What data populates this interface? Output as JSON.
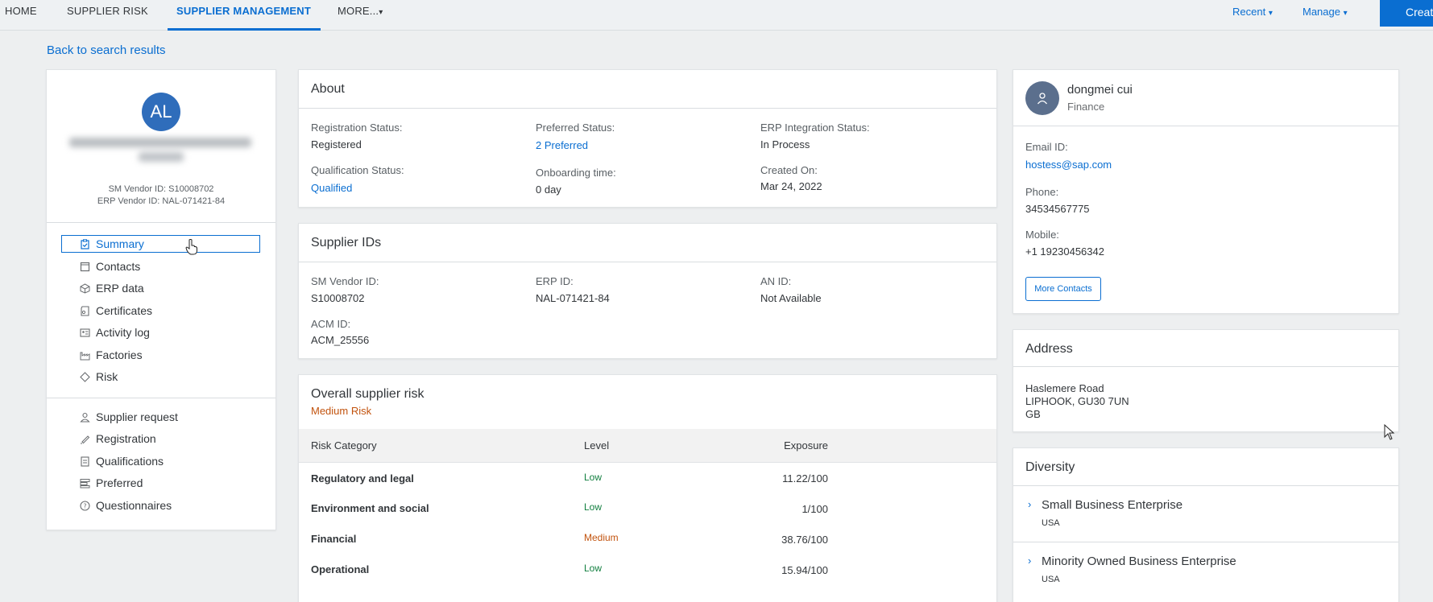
{
  "nav": {
    "items": [
      "HOME",
      "SUPPLIER RISK",
      "SUPPLIER MANAGEMENT",
      "MORE..."
    ],
    "more_caret": "▾",
    "recent": "Recent",
    "manage": "Manage",
    "caret": "▾",
    "create": "Create"
  },
  "back_link": "Back to search results",
  "profile": {
    "initials": "AL",
    "sm_vendor_id": "SM Vendor ID:  S10008702",
    "erp_vendor_id": "ERP Vendor ID:  NAL-071421-84",
    "menu": [
      "Summary",
      "Contacts",
      "ERP data",
      "Certificates",
      "Activity log",
      "Factories",
      "Risk"
    ],
    "menu2": [
      "Supplier request",
      "Registration",
      "Qualifications",
      "Preferred",
      "Questionnaires"
    ]
  },
  "about": {
    "title": "About",
    "registration_status_label": "Registration Status:",
    "registration_status": "Registered",
    "preferred_status_label": "Preferred Status:",
    "preferred_status": "2 Preferred",
    "erp_status_label": "ERP Integration Status:",
    "erp_status": "In Process",
    "qualification_status_label": "Qualification Status:",
    "qualification_status": "Qualified",
    "onboarding_label": "Onboarding time:",
    "onboarding": "0 day",
    "created_label": "Created On:",
    "created": "Mar 24, 2022"
  },
  "supplier_ids": {
    "title": "Supplier IDs",
    "sm_label": "SM Vendor ID:",
    "sm": "S10008702",
    "erp_label": "ERP ID:",
    "erp": "NAL-071421-84",
    "an_label": "AN ID:",
    "an": "Not Available",
    "acm_label": "ACM ID:",
    "acm": "ACM_25556"
  },
  "risk": {
    "title": "Overall supplier risk",
    "level": "Medium Risk",
    "col_category": "Risk Category",
    "col_level": "Level",
    "col_exposure": "Exposure",
    "rows": [
      {
        "category": "Regulatory and legal",
        "level": "Low",
        "exposure": "11.22/100"
      },
      {
        "category": "Environment and social",
        "level": "Low",
        "exposure": "1/100"
      },
      {
        "category": "Financial",
        "level": "Medium",
        "exposure": "38.76/100"
      },
      {
        "category": "Operational",
        "level": "Low",
        "exposure": "15.94/100"
      }
    ]
  },
  "contact": {
    "name": "dongmei cui",
    "dept": "Finance",
    "email_label": "Email ID:",
    "email": "hostess@sap.com",
    "phone_label": "Phone:",
    "phone": "34534567775",
    "mobile_label": "Mobile:",
    "mobile": "+1 19230456342",
    "more_button": "More Contacts"
  },
  "address": {
    "title": "Address",
    "line1": "Haslemere Road",
    "line2": "LIPHOOK, GU30 7UN",
    "line3": "GB"
  },
  "diversity": {
    "title": "Diversity",
    "items": [
      {
        "name": "Small Business Enterprise",
        "country": "USA"
      },
      {
        "name": "Minority Owned Business Enterprise",
        "country": "USA"
      }
    ]
  },
  "colors": {
    "accent": "#0a6ed1",
    "low": "#107e3e",
    "medium": "#c2530e"
  }
}
